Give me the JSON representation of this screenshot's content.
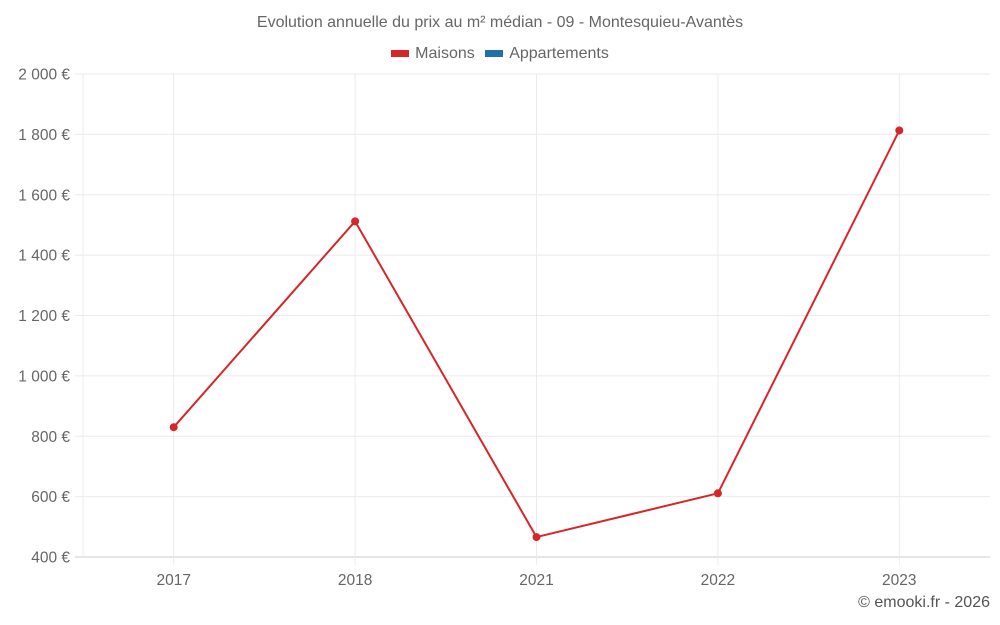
{
  "title": "Evolution annuelle du prix au m² médian - 09 - Montesquieu-Avantès",
  "legend": [
    {
      "label": "Maisons",
      "color": "#d62728"
    },
    {
      "label": "Appartements",
      "color": "#1f6fa8"
    }
  ],
  "credit": "© emooki.fr - 2026",
  "chart_data": {
    "type": "line",
    "title": "Evolution annuelle du prix au m² médian - 09 - Montesquieu-Avantès",
    "xlabel": "",
    "ylabel": "",
    "categories": [
      "2017",
      "2018",
      "2021",
      "2022",
      "2023"
    ],
    "series": [
      {
        "name": "Maisons",
        "color": "#d62728",
        "values": [
          830,
          1512,
          466,
          611,
          1813
        ]
      },
      {
        "name": "Appartements",
        "color": "#1f6fa8",
        "values": [
          null,
          null,
          null,
          null,
          null
        ]
      }
    ],
    "ylim": [
      400,
      2000
    ],
    "yticks": [
      400,
      600,
      800,
      1000,
      1200,
      1400,
      1600,
      1800,
      2000
    ],
    "ytick_labels": [
      "400 €",
      "600 €",
      "800 €",
      "1 000 €",
      "1 200 €",
      "1 400 €",
      "1 600 €",
      "1 800 €",
      "2 000 €"
    ],
    "grid": true,
    "legend_position": "top"
  }
}
